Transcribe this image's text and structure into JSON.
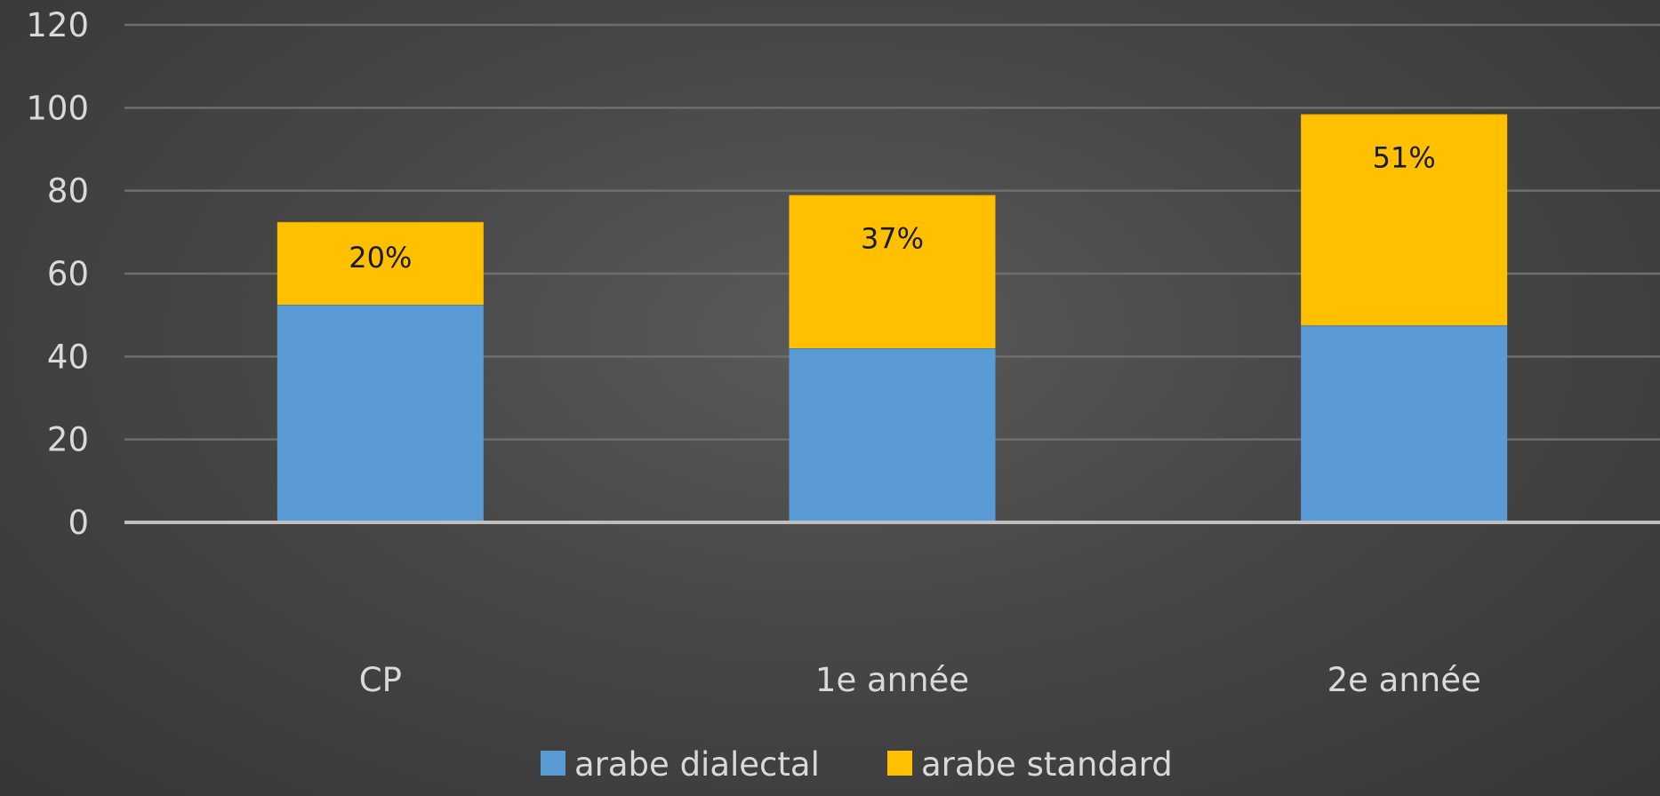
{
  "chart_data": {
    "type": "bar",
    "stacked": true,
    "title": "",
    "xlabel": "",
    "ylabel": "",
    "ylim": [
      0,
      120
    ],
    "yticks": [
      "0",
      "20",
      "40",
      "60",
      "80",
      "100",
      "120"
    ],
    "categories": [
      "CP",
      "1e année",
      "2e année"
    ],
    "series": [
      {
        "name": "arabe dialectal",
        "color": "#5b9bd5",
        "values": [
          52.5,
          42,
          47.5
        ]
      },
      {
        "name": "arabe standard",
        "color": "#ffc000",
        "values": [
          20,
          37,
          51
        ],
        "data_labels": [
          "20%",
          "37%",
          "51%"
        ]
      }
    ],
    "grid": true,
    "legend": "bottom"
  }
}
